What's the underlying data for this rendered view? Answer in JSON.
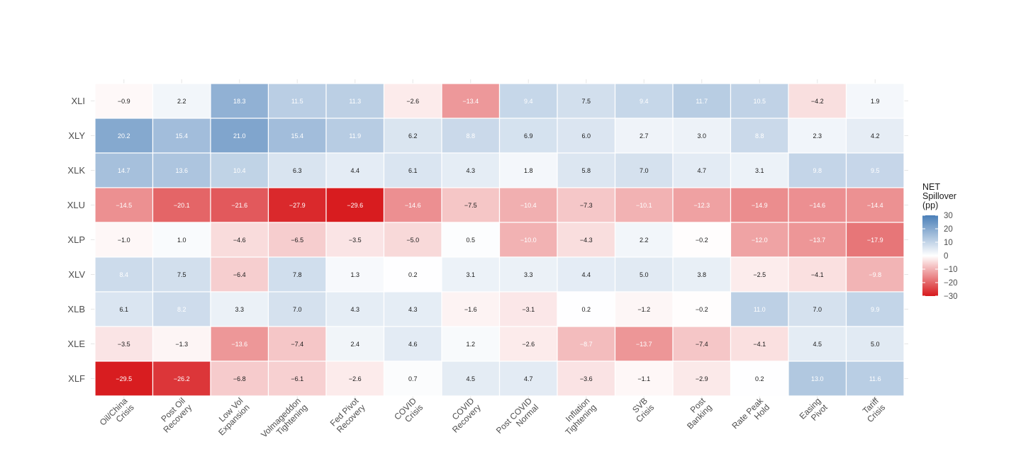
{
  "chart_data": {
    "type": "heatmap",
    "title": "",
    "xlabel": "",
    "ylabel": "",
    "rows": [
      "XLI",
      "XLY",
      "XLK",
      "XLU",
      "XLP",
      "XLV",
      "XLB",
      "XLE",
      "XLF"
    ],
    "columns": [
      [
        "Oil/China",
        "Crisis"
      ],
      [
        "Post Oil",
        "Recovery"
      ],
      [
        "Low Vol",
        "Expansion"
      ],
      [
        "Volmageddon",
        "Tightening"
      ],
      [
        "Fed Pivot",
        "Recovery"
      ],
      [
        "COVID",
        "Crisis"
      ],
      [
        "COVID",
        "Recovery"
      ],
      [
        "Post COVID",
        "Normal"
      ],
      [
        "Inflation",
        "Tightening"
      ],
      [
        "SVB",
        "Crisis"
      ],
      [
        "Post",
        "Banking"
      ],
      [
        "Rate Peak",
        "Hold"
      ],
      [
        "Easing",
        "Pivot"
      ],
      [
        "Tariff",
        "Crisis"
      ]
    ],
    "values": [
      [
        -0.9,
        2.2,
        18.3,
        11.5,
        11.3,
        -2.6,
        -13.4,
        9.4,
        7.5,
        9.4,
        11.7,
        10.5,
        -4.2,
        1.9
      ],
      [
        20.2,
        15.4,
        21.0,
        15.4,
        11.9,
        6.2,
        8.8,
        6.9,
        6.0,
        2.7,
        3.0,
        8.8,
        2.3,
        4.2
      ],
      [
        14.7,
        13.6,
        10.4,
        6.3,
        4.4,
        6.1,
        4.3,
        1.8,
        5.8,
        7.0,
        4.7,
        3.1,
        9.8,
        9.5
      ],
      [
        -14.5,
        -20.1,
        -21.6,
        -27.9,
        -29.6,
        -14.6,
        -7.5,
        -10.4,
        -7.3,
        -10.1,
        -12.3,
        -14.9,
        -14.6,
        -14.4
      ],
      [
        -1.0,
        1.0,
        -4.6,
        -6.5,
        -3.5,
        -5.0,
        0.5,
        -10.0,
        -4.3,
        2.2,
        -0.2,
        -12.0,
        -13.7,
        -17.9
      ],
      [
        8.4,
        7.5,
        -6.4,
        7.8,
        1.3,
        0.2,
        3.1,
        3.3,
        4.4,
        5.0,
        3.8,
        -2.5,
        -4.1,
        -9.8
      ],
      [
        6.1,
        8.2,
        3.3,
        7.0,
        4.3,
        4.3,
        -1.6,
        -3.1,
        0.2,
        -1.2,
        -0.2,
        11.0,
        7.0,
        9.9
      ],
      [
        -3.5,
        -1.3,
        -13.6,
        -7.4,
        2.4,
        4.6,
        1.2,
        -2.6,
        -8.7,
        -13.7,
        -7.4,
        -4.1,
        4.5,
        5.0
      ],
      [
        -29.5,
        -26.2,
        -6.8,
        -6.1,
        -2.6,
        0.7,
        4.5,
        4.7,
        -3.6,
        -1.1,
        -2.9,
        0.2,
        13.0,
        11.6
      ]
    ],
    "legend": {
      "title": [
        "NET",
        "Spillover",
        "(pp)"
      ],
      "ticks": [
        30,
        20,
        10,
        0,
        -10,
        -20,
        -30
      ],
      "range": [
        -30,
        30
      ],
      "placement": "right",
      "colors": {
        "high": "#4a7fb8",
        "mid": "#ffffff",
        "low": "#d7191c"
      }
    },
    "grid": true
  }
}
